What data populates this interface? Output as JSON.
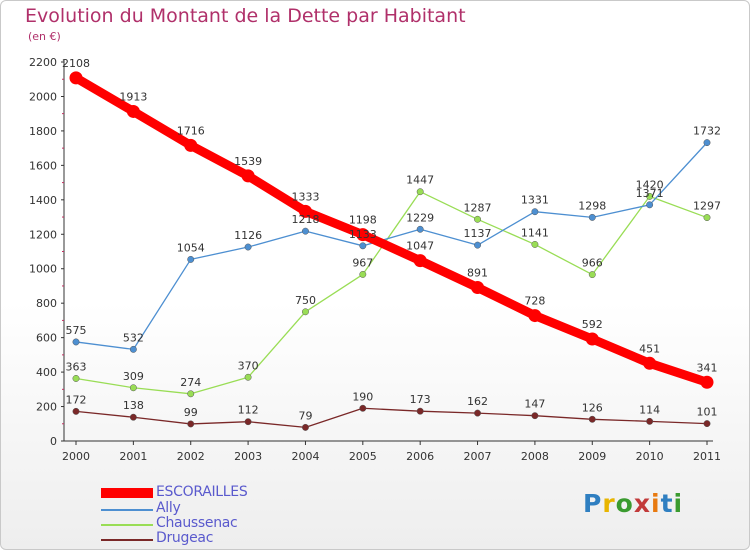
{
  "title": "Evolution du Montant de la Dette par Habitant",
  "subtitle": "(en €)",
  "logo": {
    "text": "Proxiti",
    "letter_colors": [
      "#2f7fc1",
      "#e8b500",
      "#3a9b2f",
      "#c23a3a",
      "#e87a10",
      "#2f7fc1",
      "#3a9b2f"
    ]
  },
  "chart_data": {
    "type": "line",
    "title": "Evolution du Montant de la Dette par Habitant",
    "subtitle": "(en €)",
    "x": [
      "2000",
      "2001",
      "2002",
      "2003",
      "2004",
      "2005",
      "2006",
      "2007",
      "2008",
      "2009",
      "2010",
      "2011"
    ],
    "ylim": [
      0,
      2200
    ],
    "yticks": [
      0,
      200,
      400,
      600,
      800,
      1000,
      1200,
      1400,
      1600,
      1800,
      2000,
      2200
    ],
    "grid": false,
    "legend_position": "bottom-left",
    "series": [
      {
        "name": "ESCORAILLES",
        "color": "#ff0000",
        "values": [
          2108,
          1913,
          1716,
          1539,
          1333,
          1198,
          1047,
          891,
          728,
          592,
          451,
          341
        ]
      },
      {
        "name": "Ally",
        "color": "#4d8fd1",
        "values": [
          575,
          532,
          1054,
          1126,
          1218,
          1133,
          1229,
          1137,
          1331,
          1298,
          1371,
          1732
        ]
      },
      {
        "name": "Chaussenac",
        "color": "#99dd55",
        "values": [
          363,
          309,
          274,
          370,
          750,
          967,
          1447,
          1287,
          1141,
          966,
          1420,
          1297
        ]
      },
      {
        "name": "Drugeac",
        "color": "#7a2828",
        "values": [
          172,
          138,
          99,
          112,
          79,
          190,
          173,
          162,
          147,
          126,
          114,
          101
        ]
      }
    ]
  }
}
